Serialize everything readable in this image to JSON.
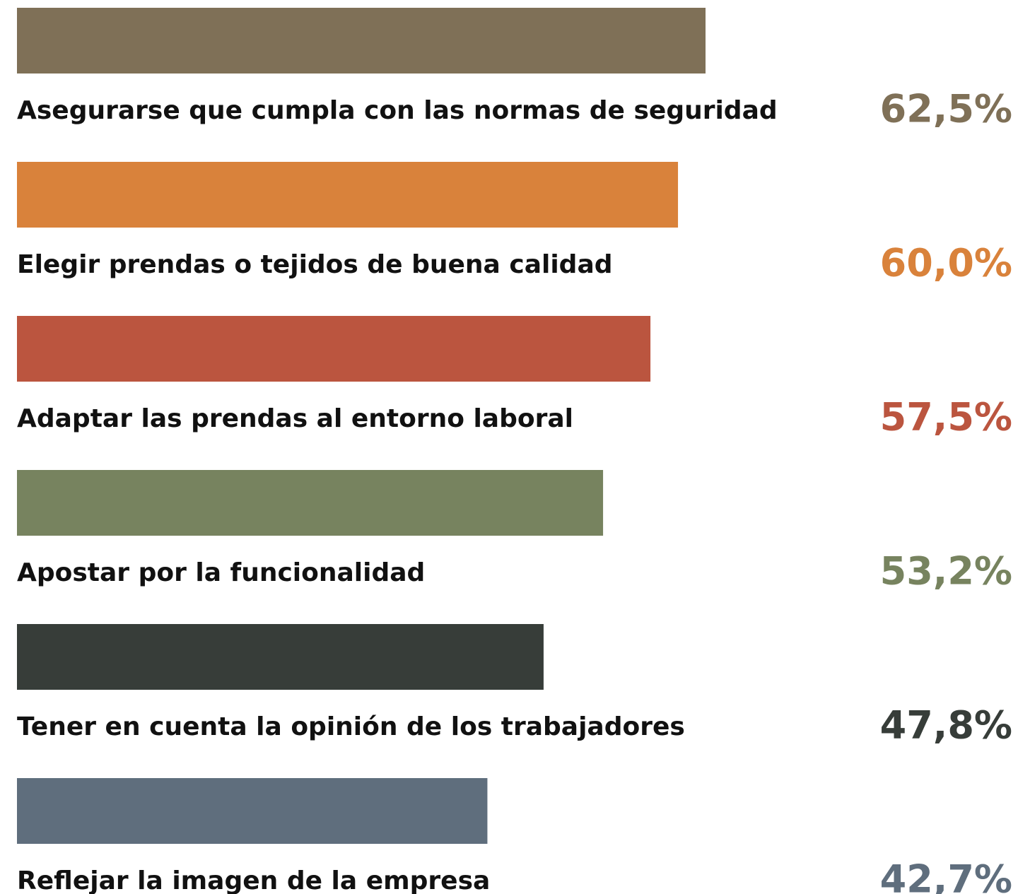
{
  "chart_data": {
    "type": "bar",
    "categories": [
      "Asegurarse que cumpla con las normas de seguridad",
      "Elegir prendas o tejidos de buena calidad",
      "Adaptar las prendas al entorno laboral",
      "Apostar por la funcionalidad",
      "Tener en cuenta la opinión de los trabajadores",
      "Reflejar la imagen de la empresa"
    ],
    "values": [
      62.5,
      60.0,
      57.5,
      53.2,
      47.8,
      42.7
    ],
    "value_labels": [
      "62,5%",
      "60,0%",
      "57,5%",
      "53,2%",
      "47,8%",
      "42,7%"
    ],
    "colors": [
      "#7f7057",
      "#d9823b",
      "#bb553f",
      "#77835f",
      "#373d39",
      "#5f6e7d"
    ]
  }
}
